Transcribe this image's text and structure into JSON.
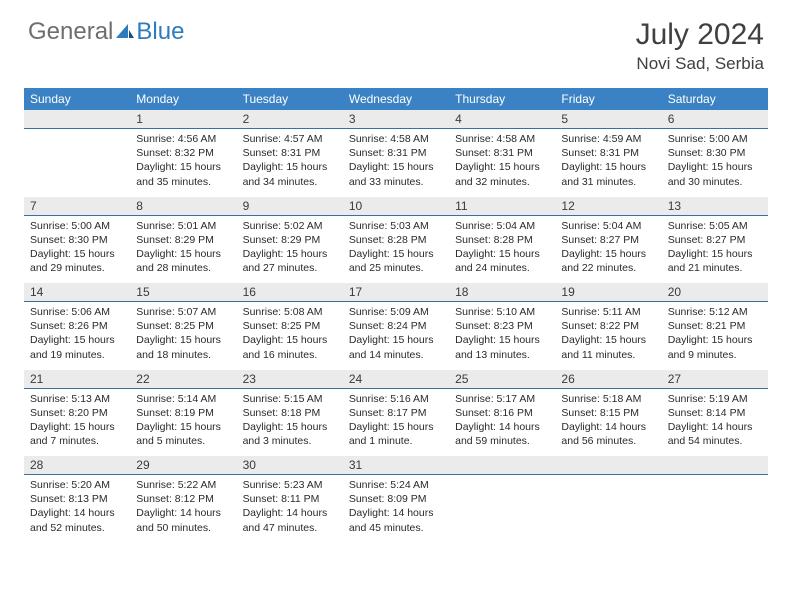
{
  "logo": {
    "word1": "General",
    "word2": "Blue"
  },
  "title": "July 2024",
  "location": "Novi Sad, Serbia",
  "colors": {
    "header_bg": "#3b82c4",
    "header_text": "#ffffff",
    "daynum_bg": "#ebebeb",
    "divider": "#3b6fa0",
    "logo_gray": "#6e6e6e",
    "logo_blue": "#2f7bbf",
    "text": "#2a2a2a"
  },
  "weekdays": [
    "Sunday",
    "Monday",
    "Tuesday",
    "Wednesday",
    "Thursday",
    "Friday",
    "Saturday"
  ],
  "weeks": [
    [
      null,
      {
        "n": "1",
        "sr": "Sunrise: 4:56 AM",
        "ss": "Sunset: 8:32 PM",
        "dl": "Daylight: 15 hours and 35 minutes."
      },
      {
        "n": "2",
        "sr": "Sunrise: 4:57 AM",
        "ss": "Sunset: 8:31 PM",
        "dl": "Daylight: 15 hours and 34 minutes."
      },
      {
        "n": "3",
        "sr": "Sunrise: 4:58 AM",
        "ss": "Sunset: 8:31 PM",
        "dl": "Daylight: 15 hours and 33 minutes."
      },
      {
        "n": "4",
        "sr": "Sunrise: 4:58 AM",
        "ss": "Sunset: 8:31 PM",
        "dl": "Daylight: 15 hours and 32 minutes."
      },
      {
        "n": "5",
        "sr": "Sunrise: 4:59 AM",
        "ss": "Sunset: 8:31 PM",
        "dl": "Daylight: 15 hours and 31 minutes."
      },
      {
        "n": "6",
        "sr": "Sunrise: 5:00 AM",
        "ss": "Sunset: 8:30 PM",
        "dl": "Daylight: 15 hours and 30 minutes."
      }
    ],
    [
      {
        "n": "7",
        "sr": "Sunrise: 5:00 AM",
        "ss": "Sunset: 8:30 PM",
        "dl": "Daylight: 15 hours and 29 minutes."
      },
      {
        "n": "8",
        "sr": "Sunrise: 5:01 AM",
        "ss": "Sunset: 8:29 PM",
        "dl": "Daylight: 15 hours and 28 minutes."
      },
      {
        "n": "9",
        "sr": "Sunrise: 5:02 AM",
        "ss": "Sunset: 8:29 PM",
        "dl": "Daylight: 15 hours and 27 minutes."
      },
      {
        "n": "10",
        "sr": "Sunrise: 5:03 AM",
        "ss": "Sunset: 8:28 PM",
        "dl": "Daylight: 15 hours and 25 minutes."
      },
      {
        "n": "11",
        "sr": "Sunrise: 5:04 AM",
        "ss": "Sunset: 8:28 PM",
        "dl": "Daylight: 15 hours and 24 minutes."
      },
      {
        "n": "12",
        "sr": "Sunrise: 5:04 AM",
        "ss": "Sunset: 8:27 PM",
        "dl": "Daylight: 15 hours and 22 minutes."
      },
      {
        "n": "13",
        "sr": "Sunrise: 5:05 AM",
        "ss": "Sunset: 8:27 PM",
        "dl": "Daylight: 15 hours and 21 minutes."
      }
    ],
    [
      {
        "n": "14",
        "sr": "Sunrise: 5:06 AM",
        "ss": "Sunset: 8:26 PM",
        "dl": "Daylight: 15 hours and 19 minutes."
      },
      {
        "n": "15",
        "sr": "Sunrise: 5:07 AM",
        "ss": "Sunset: 8:25 PM",
        "dl": "Daylight: 15 hours and 18 minutes."
      },
      {
        "n": "16",
        "sr": "Sunrise: 5:08 AM",
        "ss": "Sunset: 8:25 PM",
        "dl": "Daylight: 15 hours and 16 minutes."
      },
      {
        "n": "17",
        "sr": "Sunrise: 5:09 AM",
        "ss": "Sunset: 8:24 PM",
        "dl": "Daylight: 15 hours and 14 minutes."
      },
      {
        "n": "18",
        "sr": "Sunrise: 5:10 AM",
        "ss": "Sunset: 8:23 PM",
        "dl": "Daylight: 15 hours and 13 minutes."
      },
      {
        "n": "19",
        "sr": "Sunrise: 5:11 AM",
        "ss": "Sunset: 8:22 PM",
        "dl": "Daylight: 15 hours and 11 minutes."
      },
      {
        "n": "20",
        "sr": "Sunrise: 5:12 AM",
        "ss": "Sunset: 8:21 PM",
        "dl": "Daylight: 15 hours and 9 minutes."
      }
    ],
    [
      {
        "n": "21",
        "sr": "Sunrise: 5:13 AM",
        "ss": "Sunset: 8:20 PM",
        "dl": "Daylight: 15 hours and 7 minutes."
      },
      {
        "n": "22",
        "sr": "Sunrise: 5:14 AM",
        "ss": "Sunset: 8:19 PM",
        "dl": "Daylight: 15 hours and 5 minutes."
      },
      {
        "n": "23",
        "sr": "Sunrise: 5:15 AM",
        "ss": "Sunset: 8:18 PM",
        "dl": "Daylight: 15 hours and 3 minutes."
      },
      {
        "n": "24",
        "sr": "Sunrise: 5:16 AM",
        "ss": "Sunset: 8:17 PM",
        "dl": "Daylight: 15 hours and 1 minute."
      },
      {
        "n": "25",
        "sr": "Sunrise: 5:17 AM",
        "ss": "Sunset: 8:16 PM",
        "dl": "Daylight: 14 hours and 59 minutes."
      },
      {
        "n": "26",
        "sr": "Sunrise: 5:18 AM",
        "ss": "Sunset: 8:15 PM",
        "dl": "Daylight: 14 hours and 56 minutes."
      },
      {
        "n": "27",
        "sr": "Sunrise: 5:19 AM",
        "ss": "Sunset: 8:14 PM",
        "dl": "Daylight: 14 hours and 54 minutes."
      }
    ],
    [
      {
        "n": "28",
        "sr": "Sunrise: 5:20 AM",
        "ss": "Sunset: 8:13 PM",
        "dl": "Daylight: 14 hours and 52 minutes."
      },
      {
        "n": "29",
        "sr": "Sunrise: 5:22 AM",
        "ss": "Sunset: 8:12 PM",
        "dl": "Daylight: 14 hours and 50 minutes."
      },
      {
        "n": "30",
        "sr": "Sunrise: 5:23 AM",
        "ss": "Sunset: 8:11 PM",
        "dl": "Daylight: 14 hours and 47 minutes."
      },
      {
        "n": "31",
        "sr": "Sunrise: 5:24 AM",
        "ss": "Sunset: 8:09 PM",
        "dl": "Daylight: 14 hours and 45 minutes."
      },
      null,
      null,
      null
    ]
  ]
}
